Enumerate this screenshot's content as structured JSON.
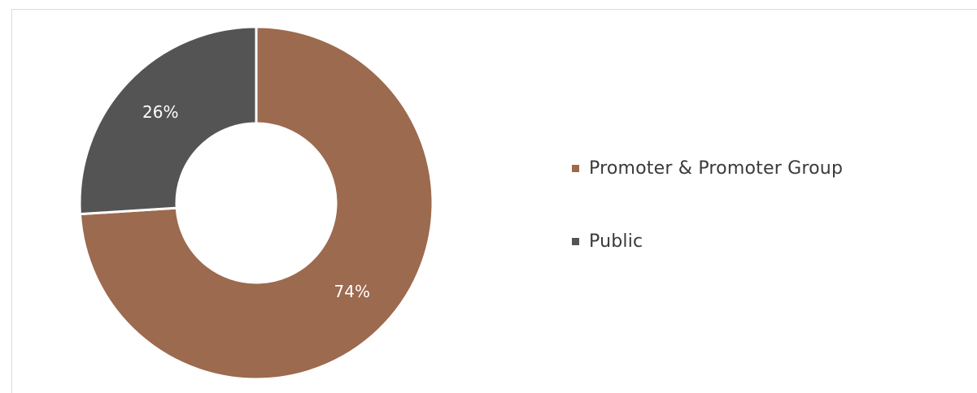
{
  "chart_data": {
    "type": "pie",
    "donut": true,
    "title": "",
    "categories": [
      "Promoter & Promoter Group",
      "Public"
    ],
    "values": [
      74,
      26
    ],
    "data_labels": [
      "74%",
      "26%"
    ],
    "colors": [
      "#9c6a4e",
      "#545454"
    ],
    "legend_position": "right"
  },
  "legend": {
    "items": [
      {
        "label": "Promoter & Promoter Group",
        "color": "#9c6a4e"
      },
      {
        "label": "Public",
        "color": "#545454"
      }
    ]
  }
}
